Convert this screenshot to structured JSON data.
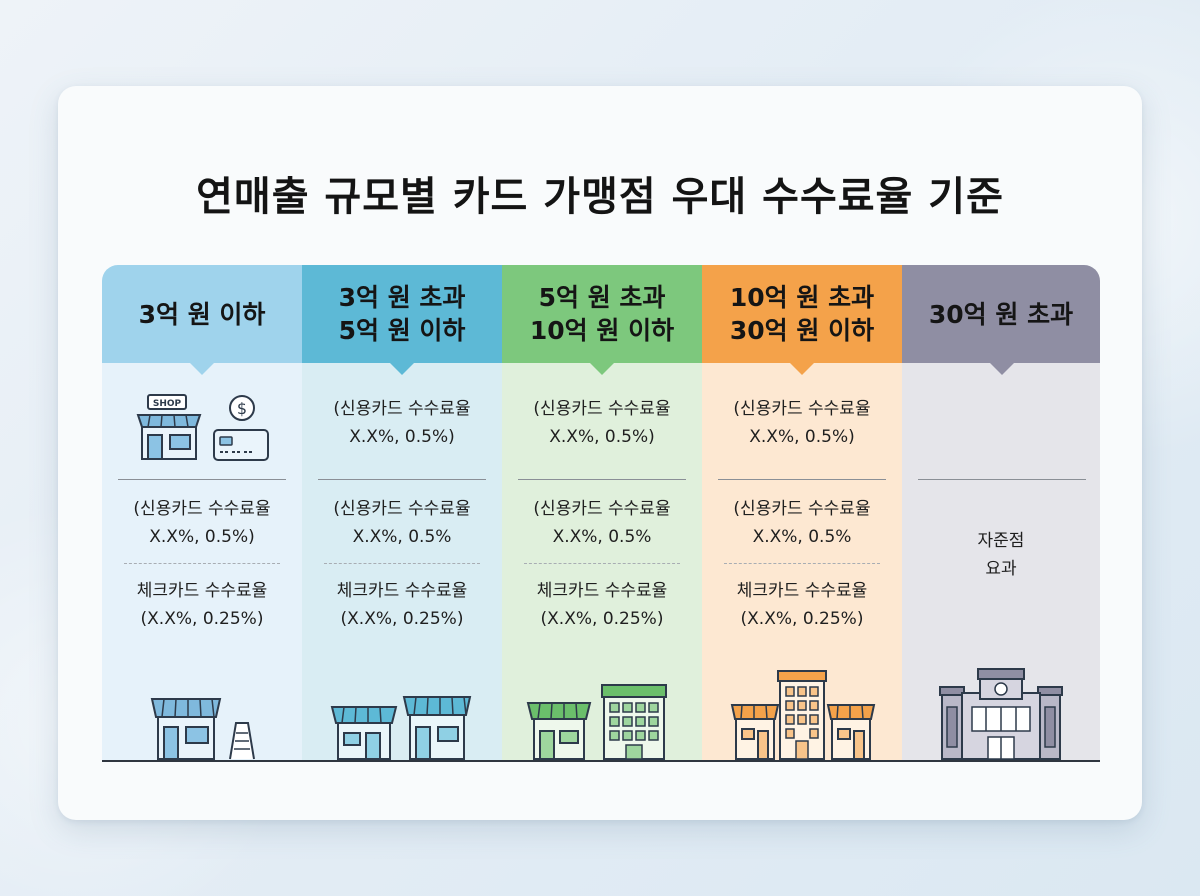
{
  "title": "연매출 규모별 카드 가맹점 우대 수수료율 기준",
  "columns": [
    {
      "header_line1": "3억 원 이하",
      "header_line2": "",
      "header_color": "#9fd3ec",
      "body_color": "#e6f2fa",
      "shop_sign": "SHOP",
      "credit": {
        "label": "(신용카드 수수료율",
        "value": "X.X%, 0.5%)"
      },
      "check": {
        "label": "체크카드 수수료율",
        "value": "(X.X%, 0.25%)"
      }
    },
    {
      "header_line1": "3억 원 초과",
      "header_line2": "5억 원 이하",
      "header_color": "#5db9d6",
      "body_color": "#d9edf3",
      "top": {
        "label": "(신용카드 수수료율",
        "value": "X.X%, 0.5%)"
      },
      "credit": {
        "label": "(신용카드 수수료율",
        "value": "X.X%, 0.5%"
      },
      "check": {
        "label": "체크카드 수수료율",
        "value": "(X.X%, 0.25%)"
      }
    },
    {
      "header_line1": "5억 원 초과",
      "header_line2": "10억 원 이하",
      "header_color": "#7dc87d",
      "body_color": "#e0f0dc",
      "top": {
        "label": "(신용카드 수수료율",
        "value": "X.X%, 0.5%)"
      },
      "credit": {
        "label": "(신용카드 수수료율",
        "value": "X.X%, 0.5%"
      },
      "check": {
        "label": "체크카드 수수료율",
        "value": "(X.X%, 0.25%)"
      }
    },
    {
      "header_line1": "10억 원 초과",
      "header_line2": "30억 원 이하",
      "header_color": "#f4a24a",
      "body_color": "#fde8d2",
      "top": {
        "label": "(신용카드 수수료율",
        "value": "X.X%, 0.5%)"
      },
      "credit": {
        "label": "(신용카드 수수료율",
        "value": "X.X%, 0.5%"
      },
      "check": {
        "label": "체크카드 수수료율",
        "value": "(X.X%, 0.25%)"
      }
    },
    {
      "header_line1": "30억 원 초과",
      "header_line2": "",
      "header_color": "#8f8ea3",
      "body_color": "#e5e5ea",
      "note_line1": "자준점",
      "note_line2": "요과"
    }
  ],
  "icons": {
    "col1_top": [
      "shop-icon",
      "dollar-icon",
      "credit-card-icon"
    ],
    "col1_bottom": [
      "small-shop-icon",
      "sign-board-icon"
    ],
    "col2_bottom": [
      "shop-icon",
      "shop-icon"
    ],
    "col3_bottom": [
      "shop-icon",
      "office-building-icon"
    ],
    "col4_bottom": [
      "shop-icon",
      "tower-building-icon",
      "shop-icon"
    ],
    "col5_bottom": [
      "large-building-icon"
    ]
  }
}
